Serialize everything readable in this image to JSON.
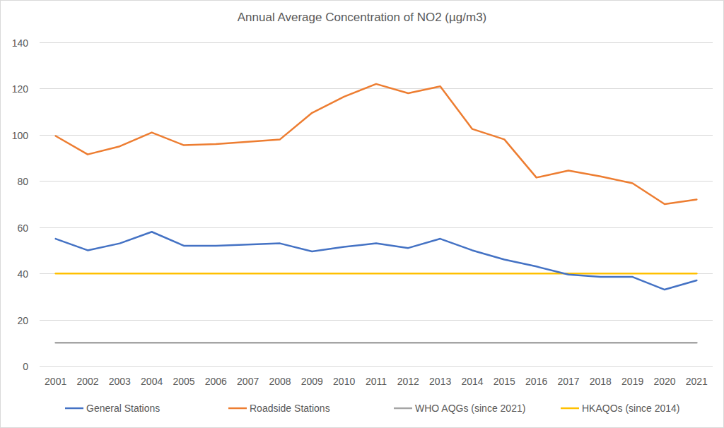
{
  "chart_data": {
    "type": "line",
    "title": "Annual Average Concentration of NO2 (µg/m3)",
    "categories": [
      "2001",
      "2002",
      "2003",
      "2004",
      "2005",
      "2006",
      "2007",
      "2008",
      "2009",
      "2010",
      "2011",
      "2012",
      "2013",
      "2014",
      "2015",
      "2016",
      "2017",
      "2018",
      "2019",
      "2020",
      "2021"
    ],
    "series": [
      {
        "name": "General Stations",
        "color": "#4472c4",
        "values": [
          55,
          50,
          53,
          58,
          52,
          52,
          52.5,
          53,
          49.5,
          51.5,
          53,
          51,
          55,
          50,
          46,
          43,
          39.5,
          38.5,
          38.5,
          33,
          37
        ]
      },
      {
        "name": "Roadside Stations",
        "color": "#ed7d31",
        "values": [
          99.5,
          91.5,
          95,
          101,
          95.5,
          96,
          97,
          98,
          109.5,
          116.5,
          122,
          118,
          121,
          102.5,
          98,
          81.5,
          84.5,
          82,
          79,
          70,
          72
        ]
      },
      {
        "name": "WHO AQGs (since 2021)",
        "color": "#a5a5a5",
        "values": [
          10,
          10,
          10,
          10,
          10,
          10,
          10,
          10,
          10,
          10,
          10,
          10,
          10,
          10,
          10,
          10,
          10,
          10,
          10,
          10,
          10
        ]
      },
      {
        "name": "HKAQOs (since 2014)",
        "color": "#ffc000",
        "values": [
          40,
          40,
          40,
          40,
          40,
          40,
          40,
          40,
          40,
          40,
          40,
          40,
          40,
          40,
          40,
          40,
          40,
          40,
          40,
          40,
          40
        ]
      }
    ],
    "ylim": [
      0,
      140
    ],
    "yticks": [
      0,
      20,
      40,
      60,
      80,
      100,
      120,
      140
    ],
    "grid": true,
    "legend": "bottom"
  }
}
